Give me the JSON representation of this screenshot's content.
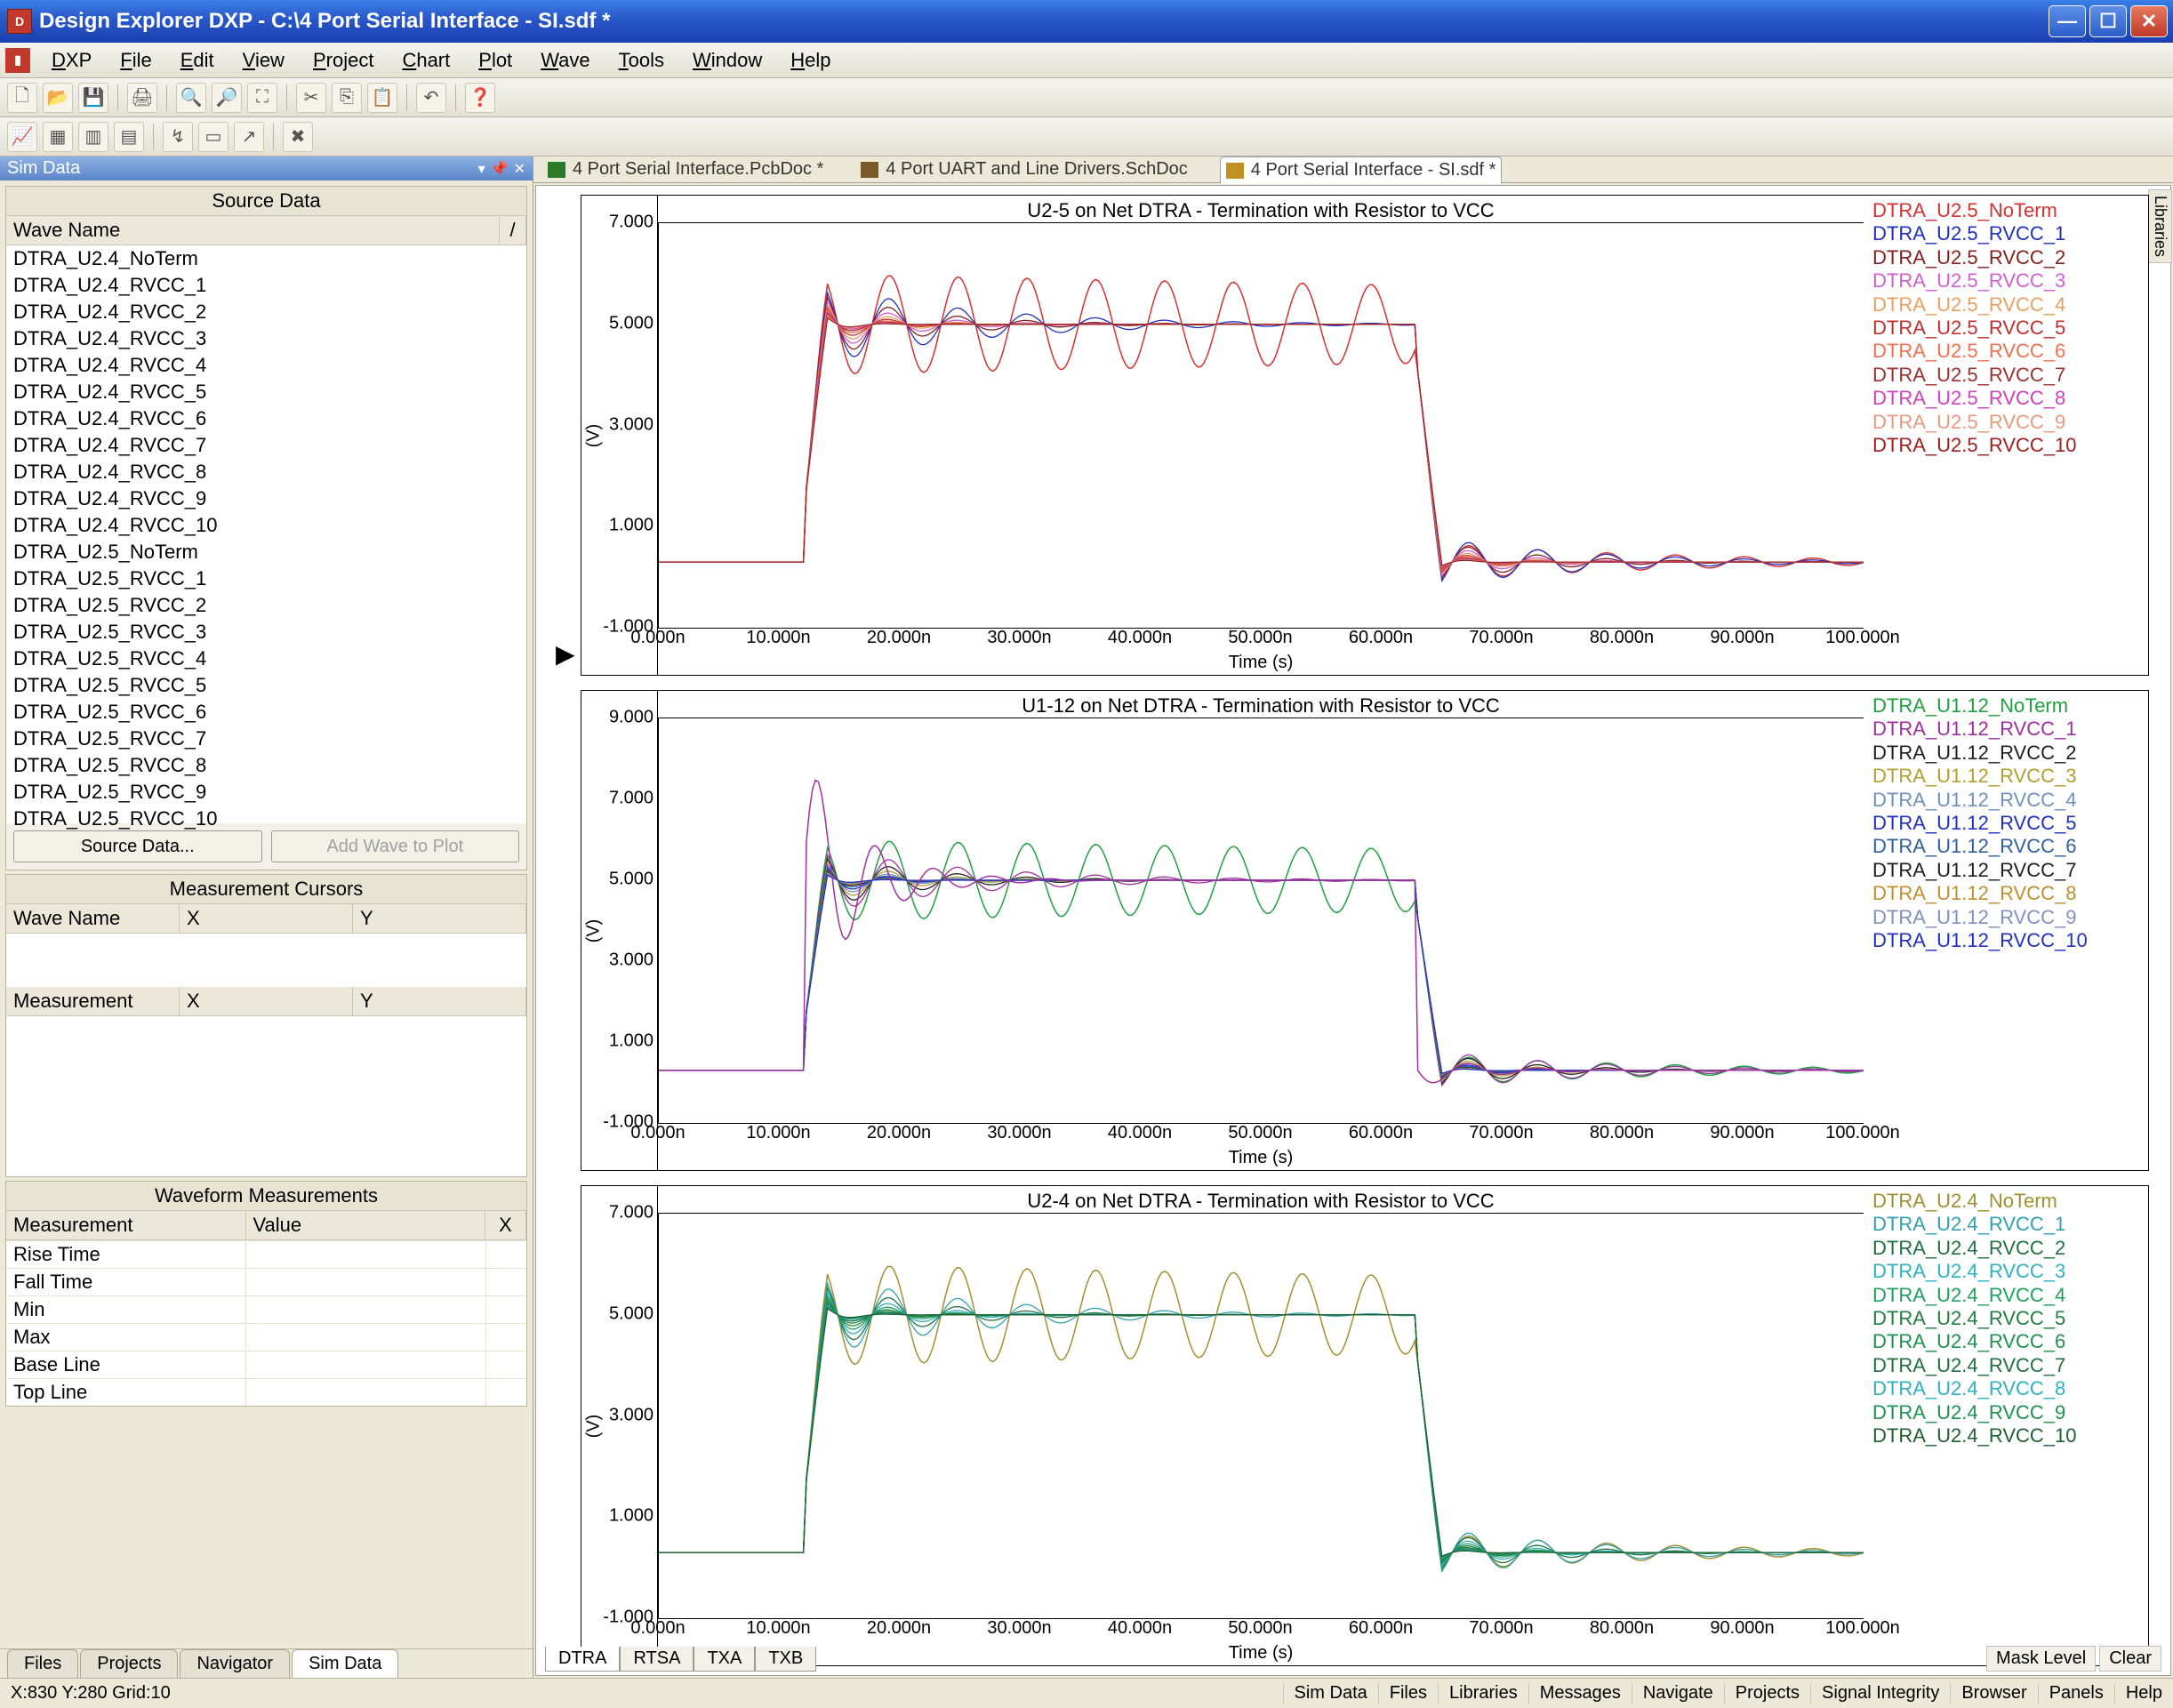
{
  "window": {
    "title": "Design Explorer DXP - C:\\4 Port Serial Interface - SI.sdf *"
  },
  "menu": [
    "DXP",
    "File",
    "Edit",
    "View",
    "Project",
    "Chart",
    "Plot",
    "Wave",
    "Tools",
    "Window",
    "Help"
  ],
  "docTabs": [
    {
      "label": "4 Port Serial Interface.PcbDoc *",
      "ico": "pcb"
    },
    {
      "label": "4 Port UART and Line Drivers.SchDoc",
      "ico": "sch"
    },
    {
      "label": "4 Port Serial Interface - SI.sdf *",
      "ico": "sdf",
      "active": true
    }
  ],
  "simPanel": {
    "title": "Sim Data",
    "source_title": "Source Data",
    "wave_header": "Wave Name",
    "waves": [
      "DTRA_U2.4_NoTerm",
      "DTRA_U2.4_RVCC_1",
      "DTRA_U2.4_RVCC_2",
      "DTRA_U2.4_RVCC_3",
      "DTRA_U2.4_RVCC_4",
      "DTRA_U2.4_RVCC_5",
      "DTRA_U2.4_RVCC_6",
      "DTRA_U2.4_RVCC_7",
      "DTRA_U2.4_RVCC_8",
      "DTRA_U2.4_RVCC_9",
      "DTRA_U2.4_RVCC_10",
      "DTRA_U2.5_NoTerm",
      "DTRA_U2.5_RVCC_1",
      "DTRA_U2.5_RVCC_2",
      "DTRA_U2.5_RVCC_3",
      "DTRA_U2.5_RVCC_4",
      "DTRA_U2.5_RVCC_5",
      "DTRA_U2.5_RVCC_6",
      "DTRA_U2.5_RVCC_7",
      "DTRA_U2.5_RVCC_8",
      "DTRA_U2.5_RVCC_9",
      "DTRA_U2.5_RVCC_10"
    ],
    "source_btn": "Source Data...",
    "add_btn": "Add Wave to Plot",
    "cursors_title": "Measurement Cursors",
    "cursors_cols": [
      "Wave Name",
      "X",
      "Y"
    ],
    "meas_cols": [
      "Measurement",
      "X",
      "Y"
    ],
    "wfm_title": "Waveform Measurements",
    "wfm_cols": [
      "Measurement",
      "Value",
      "X"
    ],
    "wfm_rows": [
      "Rise Time",
      "Fall Time",
      "Min",
      "Max",
      "Base Line",
      "Top Line"
    ]
  },
  "bottomTabs": [
    "Files",
    "Projects",
    "Navigator",
    "Sim Data"
  ],
  "chartTabs": [
    "DTRA",
    "RTSA",
    "TXA",
    "TXB"
  ],
  "mask": [
    "Mask Level",
    "Clear"
  ],
  "status": {
    "left": "X:830 Y:280  Grid:10",
    "right": [
      "Sim Data",
      "Files",
      "Libraries",
      "Messages",
      "Navigate",
      "Projects",
      "Signal Integrity",
      "Browser",
      "Panels",
      "Help"
    ]
  },
  "vtab": "Libraries",
  "charts": [
    {
      "title": "U2-5 on Net DTRA - Termination with Resistor to VCC",
      "ylim": [
        -1,
        7
      ],
      "yticks": [
        "-1.000",
        "1.000",
        "3.000",
        "5.000",
        "7.000"
      ],
      "xlabel": "Time (s)",
      "ylabel": "(V)",
      "xticks": [
        "0.000n",
        "10.000n",
        "20.000n",
        "30.000n",
        "40.000n",
        "50.000n",
        "60.000n",
        "70.000n",
        "80.000n",
        "90.000n",
        "100.000n"
      ],
      "legend": [
        {
          "label": "DTRA_U2.5_NoTerm",
          "color": "#d93030"
        },
        {
          "label": "DTRA_U2.5_RVCC_1",
          "color": "#2030c0"
        },
        {
          "label": "DTRA_U2.5_RVCC_2",
          "color": "#862020"
        },
        {
          "label": "DTRA_U2.5_RVCC_3",
          "color": "#d060d0"
        },
        {
          "label": "DTRA_U2.5_RVCC_4",
          "color": "#e6a060"
        },
        {
          "label": "DTRA_U2.5_RVCC_5",
          "color": "#c03030"
        },
        {
          "label": "DTRA_U2.5_RVCC_6",
          "color": "#f07050"
        },
        {
          "label": "DTRA_U2.5_RVCC_7",
          "color": "#a03030"
        },
        {
          "label": "DTRA_U2.5_RVCC_8",
          "color": "#d040c0"
        },
        {
          "label": "DTRA_U2.5_RVCC_9",
          "color": "#e69a80"
        },
        {
          "label": "DTRA_U2.5_RVCC_10",
          "color": "#a02020"
        }
      ],
      "base_color": "#d93030",
      "overlays": [
        "#2030c0",
        "#862020",
        "#d060d0",
        "#e6a060",
        "#c03030",
        "#f07050",
        "#a03030",
        "#d040c0",
        "#e69a80",
        "#a02020"
      ]
    },
    {
      "title": "U1-12 on Net DTRA - Termination with Resistor to VCC",
      "ylim": [
        -1,
        9
      ],
      "yticks": [
        "-1.000",
        "1.000",
        "3.000",
        "5.000",
        "7.000",
        "9.000"
      ],
      "xlabel": "Time (s)",
      "ylabel": "(V)",
      "xticks": [
        "0.000n",
        "10.000n",
        "20.000n",
        "30.000n",
        "40.000n",
        "50.000n",
        "60.000n",
        "70.000n",
        "80.000n",
        "90.000n",
        "100.000n"
      ],
      "legend": [
        {
          "label": "DTRA_U1.12_NoTerm",
          "color": "#20a040"
        },
        {
          "label": "DTRA_U1.12_RVCC_1",
          "color": "#a030a0"
        },
        {
          "label": "DTRA_U1.12_RVCC_2",
          "color": "#202020"
        },
        {
          "label": "DTRA_U1.12_RVCC_3",
          "color": "#b0a030"
        },
        {
          "label": "DTRA_U1.12_RVCC_4",
          "color": "#7090c0"
        },
        {
          "label": "DTRA_U1.12_RVCC_5",
          "color": "#2030c0"
        },
        {
          "label": "DTRA_U1.12_RVCC_6",
          "color": "#3060a0"
        },
        {
          "label": "DTRA_U1.12_RVCC_7",
          "color": "#202020"
        },
        {
          "label": "DTRA_U1.12_RVCC_8",
          "color": "#c09030"
        },
        {
          "label": "DTRA_U1.12_RVCC_9",
          "color": "#8090c0"
        },
        {
          "label": "DTRA_U1.12_RVCC_10",
          "color": "#2030c0"
        }
      ],
      "base_color": "#20a040",
      "overlays": [
        "#a030a0",
        "#202020",
        "#b0a030",
        "#7090c0",
        "#2030c0",
        "#3060a0",
        "#202020",
        "#c09030",
        "#8090c0",
        "#2030c0"
      ]
    },
    {
      "title": "U2-4 on Net DTRA - Termination with Resistor to VCC",
      "ylim": [
        -1,
        7
      ],
      "yticks": [
        "-1.000",
        "1.000",
        "3.000",
        "5.000",
        "7.000"
      ],
      "xlabel": "Time (s)",
      "ylabel": "(V)",
      "xticks": [
        "0.000n",
        "10.000n",
        "20.000n",
        "30.000n",
        "40.000n",
        "50.000n",
        "60.000n",
        "70.000n",
        "80.000n",
        "90.000n",
        "100.000n"
      ],
      "legend": [
        {
          "label": "DTRA_U2.4_NoTerm",
          "color": "#a09030"
        },
        {
          "label": "DTRA_U2.4_RVCC_1",
          "color": "#30a0b0"
        },
        {
          "label": "DTRA_U2.4_RVCC_2",
          "color": "#207040"
        },
        {
          "label": "DTRA_U2.4_RVCC_3",
          "color": "#30b0c0"
        },
        {
          "label": "DTRA_U2.4_RVCC_4",
          "color": "#20a060"
        },
        {
          "label": "DTRA_U2.4_RVCC_5",
          "color": "#208040"
        },
        {
          "label": "DTRA_U2.4_RVCC_6",
          "color": "#209050"
        },
        {
          "label": "DTRA_U2.4_RVCC_7",
          "color": "#207040"
        },
        {
          "label": "DTRA_U2.4_RVCC_8",
          "color": "#30b0c0"
        },
        {
          "label": "DTRA_U2.4_RVCC_9",
          "color": "#209050"
        },
        {
          "label": "DTRA_U2.4_RVCC_10",
          "color": "#206030"
        }
      ],
      "base_color": "#a09030",
      "overlays": [
        "#30a0b0",
        "#207040",
        "#30b0c0",
        "#20a060",
        "#208040",
        "#209050",
        "#207040",
        "#30b0c0",
        "#209050",
        "#206030"
      ]
    }
  ]
}
